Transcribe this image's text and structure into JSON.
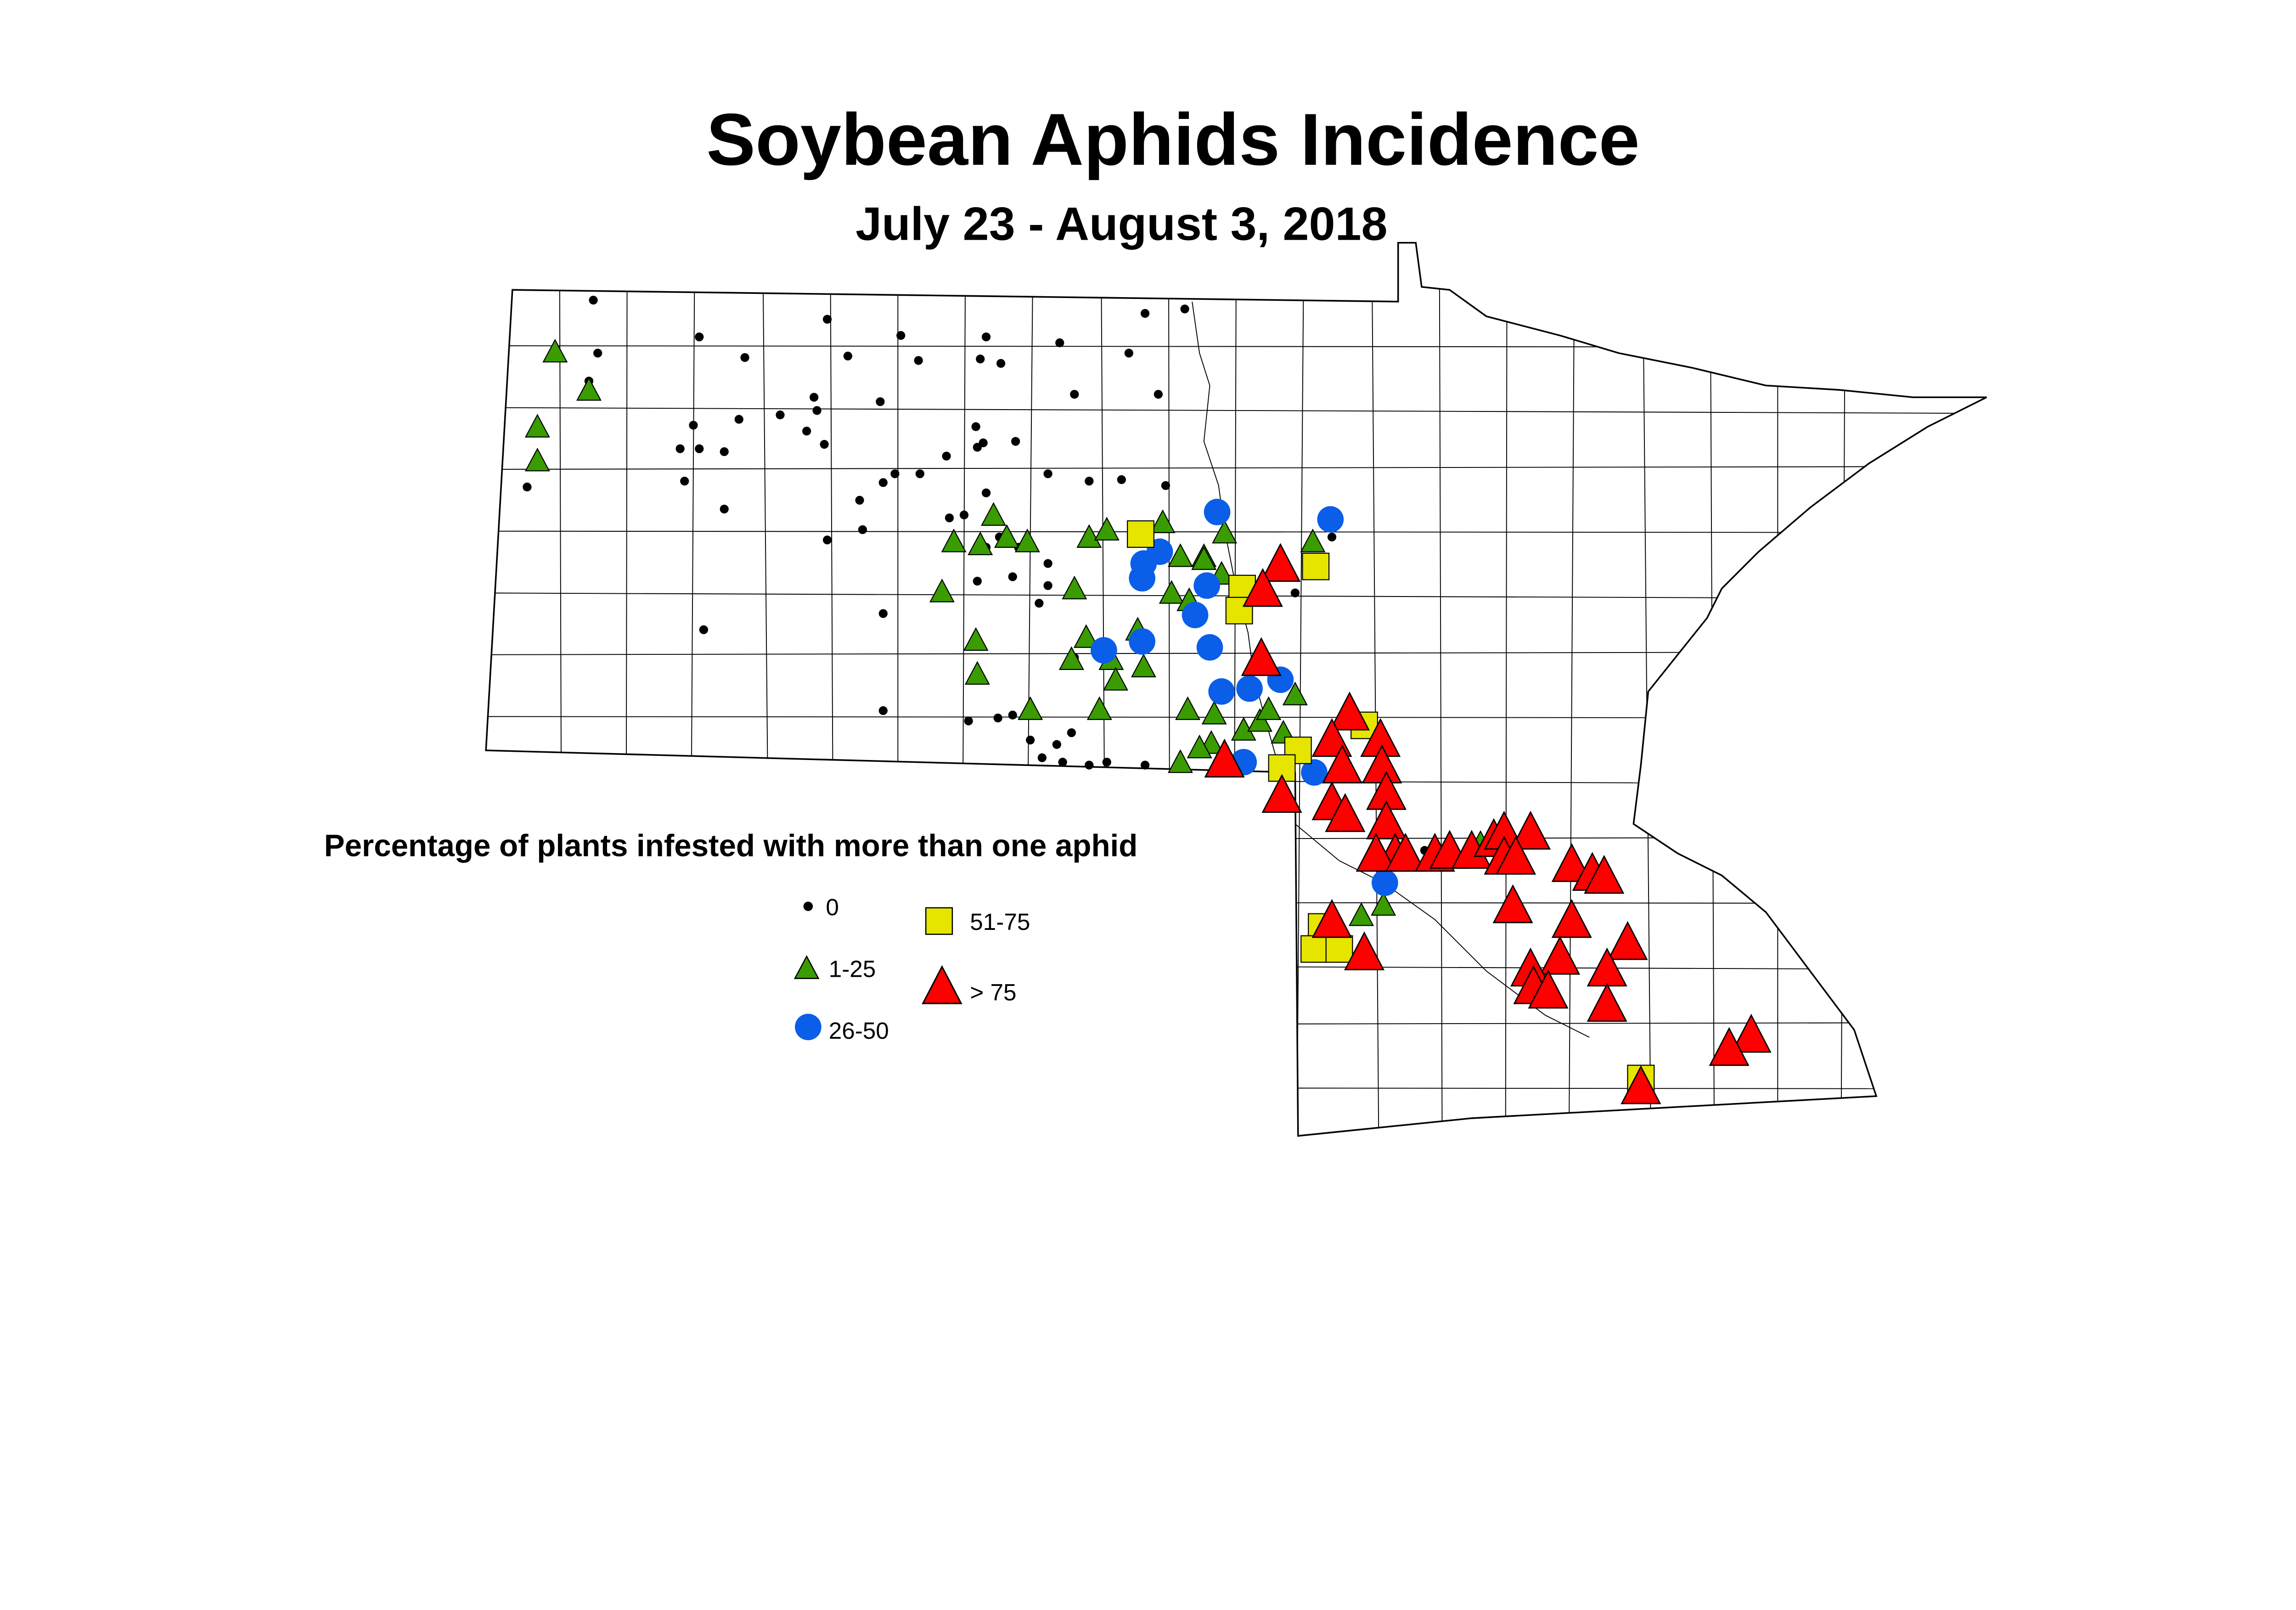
{
  "title": "Soybean Aphids Incidence",
  "subtitle": "July 23 - August 3, 2018",
  "legend": {
    "title": "Percentage of plants infested with more than one aphid",
    "items": [
      {
        "label": "0",
        "symbol": "dot",
        "color": "#000000"
      },
      {
        "label": "1-25",
        "symbol": "triangle",
        "color": "#3a9c00"
      },
      {
        "label": "26-50",
        "symbol": "circle",
        "color": "#0a5ee8"
      },
      {
        "label": "51-75",
        "symbol": "square",
        "color": "#e5e500"
      },
      {
        "label": "> 75",
        "symbol": "large-triangle",
        "color": "#ff0000"
      }
    ]
  }
}
